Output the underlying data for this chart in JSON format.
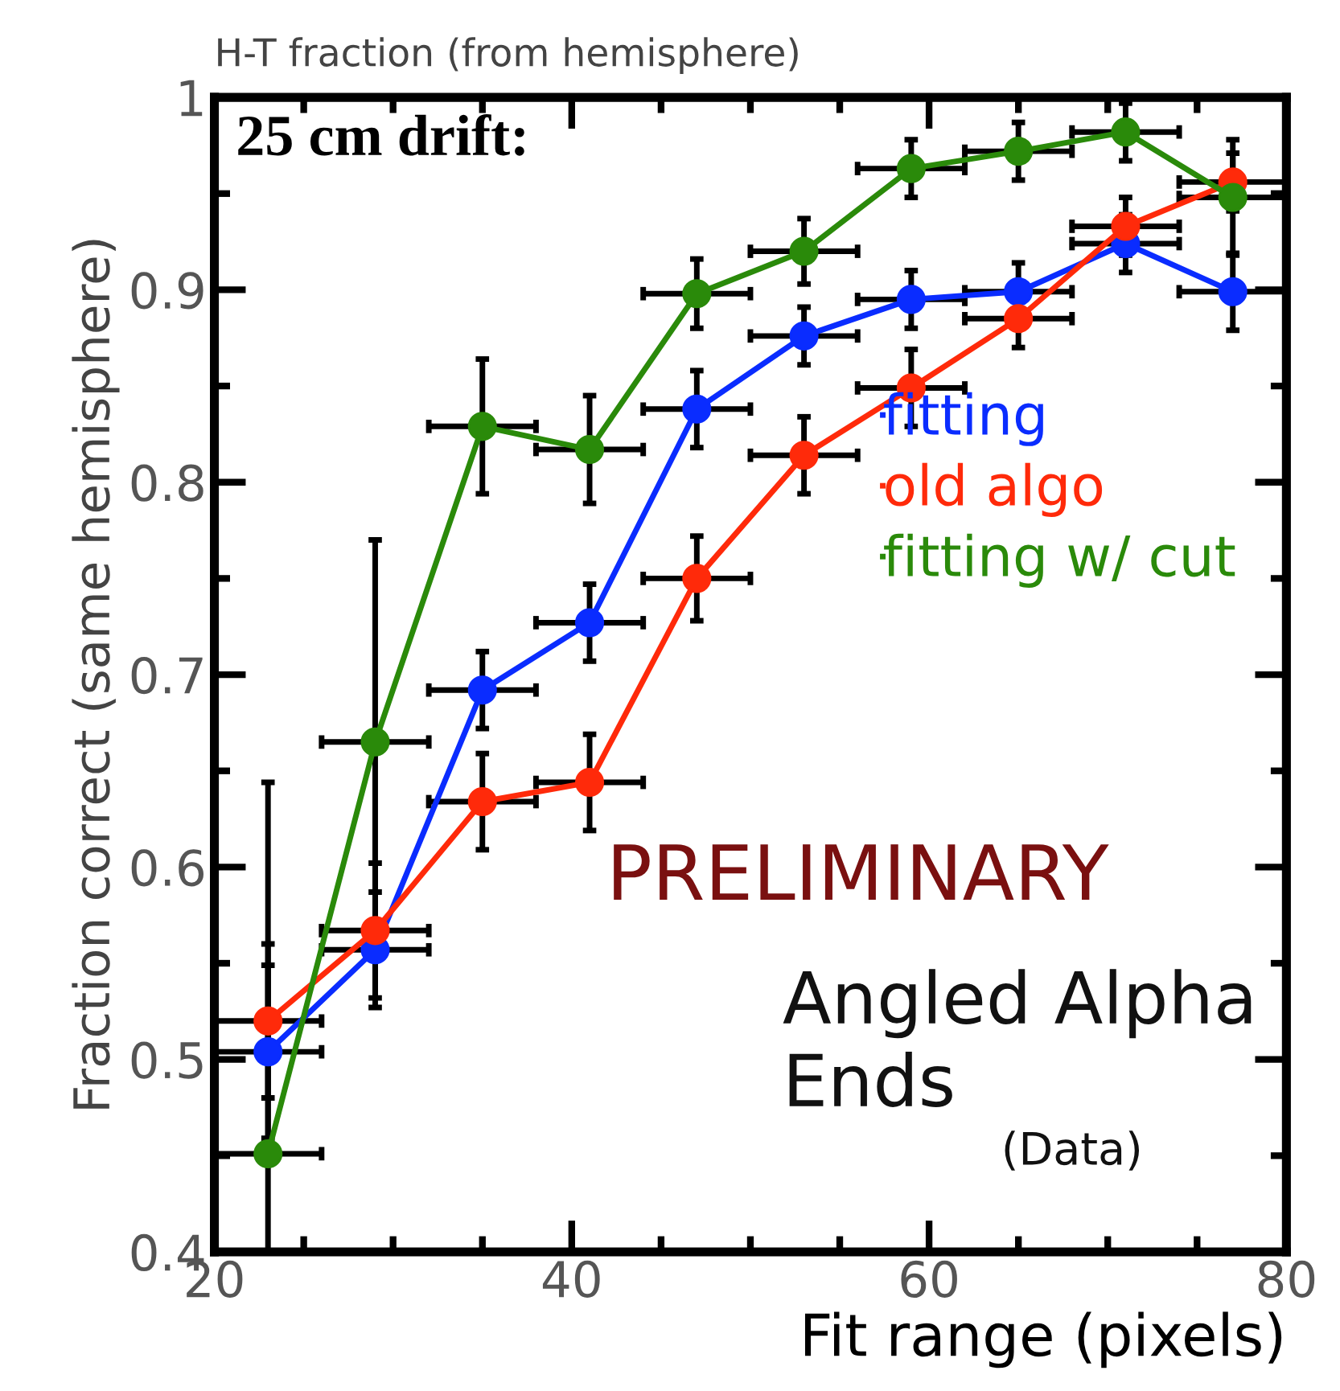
{
  "chart_data": {
    "type": "line",
    "title": "H-T fraction (from hemisphere)",
    "xlabel": "Fit range (pixels)",
    "ylabel": "Fraction correct (same hemisphere)",
    "x": [
      23,
      29,
      35,
      41,
      47,
      53,
      59,
      65,
      71,
      77
    ],
    "series": [
      {
        "name": "fitting",
        "color": "#0a2cff",
        "values": [
          0.504,
          0.557,
          0.692,
          0.727,
          0.838,
          0.876,
          0.895,
          0.899,
          0.924,
          0.899
        ],
        "errors": [
          0.045,
          0.03,
          0.02,
          0.02,
          0.02,
          0.015,
          0.015,
          0.015,
          0.015,
          0.02
        ],
        "xerrors": [
          3,
          3,
          3,
          3,
          3,
          3,
          3,
          3,
          3,
          3
        ]
      },
      {
        "name": "old algo",
        "color": "#ff2a0a",
        "values": [
          0.52,
          0.567,
          0.634,
          0.644,
          0.75,
          0.814,
          0.849,
          0.885,
          0.933,
          0.956
        ],
        "errors": [
          0.04,
          0.035,
          0.025,
          0.025,
          0.022,
          0.02,
          0.02,
          0.015,
          0.015,
          0.015
        ],
        "xerrors": [
          3,
          3,
          3,
          3,
          3,
          3,
          3,
          3,
          3,
          3
        ]
      },
      {
        "name": "fitting w/ cut",
        "color": "#2a8a0a",
        "values": [
          0.451,
          0.665,
          0.829,
          0.817,
          0.898,
          0.92,
          0.963,
          0.972,
          0.982,
          0.948
        ],
        "errors": [
          [
            0.4,
            0.644
          ],
          0.105,
          0.035,
          0.028,
          0.018,
          0.017,
          0.015,
          0.015,
          0.015,
          0.03
        ],
        "xerrors": [
          3,
          3,
          3,
          3,
          3,
          3,
          3,
          3,
          3,
          3
        ]
      }
    ],
    "xlim": [
      20,
      80
    ],
    "ylim": [
      0.4,
      1.0
    ],
    "xticks": [
      20,
      40,
      60,
      80
    ],
    "yticks": [
      0.4,
      0.5,
      0.6,
      0.7,
      0.8,
      0.9,
      {
        "value": 1.0,
        "label": "1"
      }
    ],
    "marker": "circle",
    "legend": "right",
    "grid": false,
    "annotations": [
      "25 cm drift:",
      "PRELIMINARY",
      "Angled Alpha\nEnds",
      "(Data)"
    ]
  }
}
